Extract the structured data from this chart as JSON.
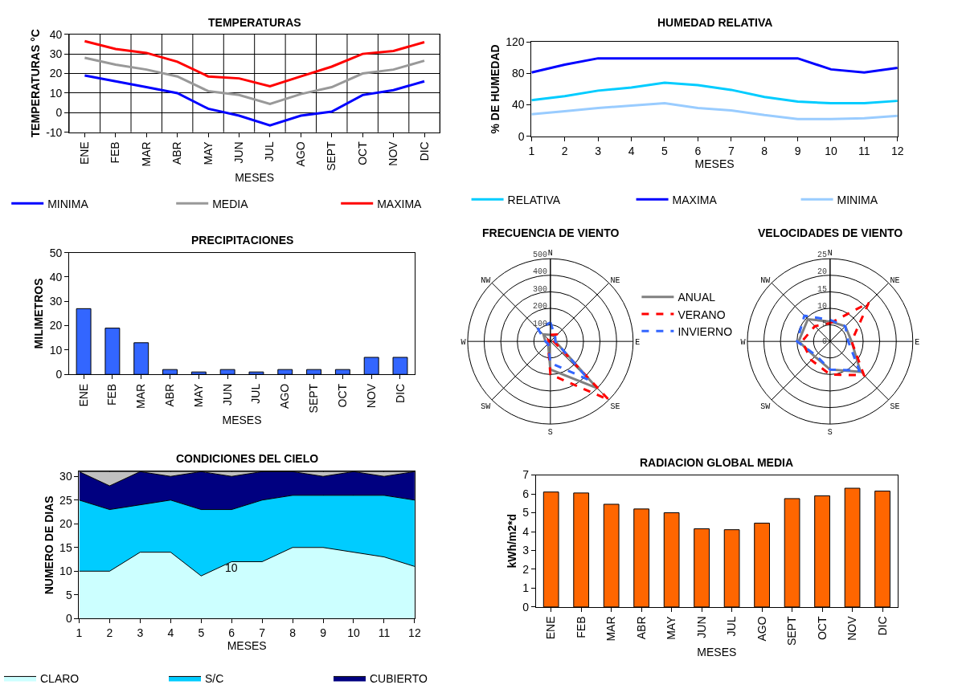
{
  "chart_data": [
    {
      "type": "line",
      "title": "TEMPERATURAS",
      "xlabel": "MESES",
      "ylabel": "TEMPERATURAS °C",
      "categories": [
        "ENE",
        "FEB",
        "MAR",
        "ABR",
        "MAY",
        "JUN",
        "JUL",
        "AGO",
        "SEPT",
        "OCT",
        "NOV",
        "DIC"
      ],
      "ylim": [
        -10,
        40
      ],
      "yticks": [
        -10,
        0,
        10,
        20,
        30,
        40
      ],
      "grid": true,
      "legend": "bottom",
      "series": [
        {
          "name": "MINIMA",
          "color": "#0000ff",
          "values": [
            19,
            16,
            13,
            10,
            2,
            -1.5,
            -6.5,
            -1.5,
            0.5,
            9,
            11.5,
            16
          ]
        },
        {
          "name": "MEDIA",
          "color": "#999999",
          "values": [
            28,
            24.5,
            22,
            18.5,
            11,
            9,
            4.5,
            9.5,
            13,
            20,
            22,
            26.5
          ]
        },
        {
          "name": "MAXIMA",
          "color": "#ff0000",
          "values": [
            36.5,
            32.5,
            30.5,
            26,
            18.5,
            17.5,
            13.5,
            18.5,
            23.5,
            30,
            31.5,
            36
          ]
        }
      ]
    },
    {
      "type": "line",
      "title": "HUMEDAD RELATIVA",
      "xlabel": "MESES",
      "ylabel": "% DE HUMEDAD",
      "x": [
        1,
        2,
        3,
        4,
        5,
        6,
        7,
        8,
        9,
        10,
        11,
        12
      ],
      "xlim": [
        1,
        12
      ],
      "xticks": [
        1,
        2,
        3,
        4,
        5,
        6,
        7,
        8,
        9,
        10,
        11,
        12
      ],
      "ylim": [
        0,
        120
      ],
      "yticks": [
        0,
        40,
        80,
        120
      ],
      "legend": "bottom",
      "series": [
        {
          "name": "RELATIVA",
          "color": "#00ccff",
          "values": [
            46,
            51,
            58,
            62,
            68,
            65,
            59,
            50,
            44,
            42,
            42,
            45
          ]
        },
        {
          "name": "MAXIMA",
          "color": "#0000ff",
          "values": [
            81,
            91,
            99,
            99,
            99,
            99,
            99,
            99,
            99,
            85,
            81,
            87
          ]
        },
        {
          "name": "MINIMA",
          "color": "#99ccff",
          "values": [
            28,
            32,
            36,
            39,
            42,
            36,
            33,
            27,
            22,
            22,
            23,
            26
          ]
        }
      ]
    },
    {
      "type": "bar",
      "title": "PRECIPITACIONES",
      "xlabel": "MESES",
      "ylabel": "MILIMETROS",
      "categories": [
        "ENE",
        "FEB",
        "MAR",
        "ABR",
        "MAY",
        "JUN",
        "JUL",
        "AGO",
        "SEPT",
        "OCT",
        "NOV",
        "DIC"
      ],
      "ylim": [
        0,
        50
      ],
      "yticks": [
        0,
        10,
        20,
        30,
        40,
        50
      ],
      "color": "#3366ff",
      "values": [
        27,
        19,
        13,
        2,
        1,
        2,
        1,
        2,
        2,
        2,
        7,
        7
      ]
    },
    {
      "type": "radar",
      "title": "FRECUENCIA DE VIENTO",
      "categories": [
        "N",
        "NE",
        "E",
        "SE",
        "S",
        "SW",
        "W",
        "NW"
      ],
      "ylim": [
        0,
        500
      ],
      "yticks": [
        100,
        200,
        300,
        400,
        500
      ],
      "grid": true,
      "legend": "right",
      "series": [
        {
          "name": "ANUAL",
          "color": "#808080",
          "line_style": "solid",
          "values": [
            40,
            40,
            30,
            400,
            170,
            20,
            30,
            60
          ]
        },
        {
          "name": "VERANO",
          "color": "#ff0000",
          "line_style": "dashed",
          "values": [
            40,
            60,
            20,
            500,
            200,
            20,
            10,
            20
          ]
        },
        {
          "name": "INVIERNO",
          "color": "#3366ff",
          "line_style": "dashed",
          "values": [
            115,
            40,
            30,
            330,
            130,
            20,
            30,
            105
          ]
        }
      ]
    },
    {
      "type": "radar",
      "title": "VELOCIDADES DE VIENTO",
      "categories": [
        "N",
        "NE",
        "E",
        "SE",
        "S",
        "SW",
        "W",
        "NW"
      ],
      "ylim": [
        0,
        25
      ],
      "yticks": [
        0,
        5,
        10,
        15,
        20,
        25
      ],
      "grid": true,
      "series": [
        {
          "color": "#808080",
          "line_style": "solid",
          "values": [
            6,
            6.5,
            6.5,
            13,
            8.5,
            6.5,
            9.5,
            9.5
          ]
        },
        {
          "color": "#ff0000",
          "line_style": "dashed",
          "values": [
            5.5,
            16.5,
            6.5,
            14.5,
            10,
            8,
            8.5,
            6.5
          ]
        },
        {
          "color": "#3366ff",
          "line_style": "dashed",
          "values": [
            6.5,
            6.5,
            5.5,
            12.5,
            8.5,
            6,
            10,
            11
          ]
        }
      ]
    },
    {
      "type": "area",
      "stacked": true,
      "title": "CONDICIONES DEL CIELO",
      "xlabel": "MESES",
      "ylabel": "NUMERO DE DIAS",
      "x": [
        1,
        2,
        3,
        4,
        5,
        6,
        7,
        8,
        9,
        10,
        11,
        12
      ],
      "xlim": [
        1,
        12
      ],
      "xticks": [
        1,
        2,
        3,
        4,
        5,
        6,
        7,
        8,
        9,
        10,
        11,
        12
      ],
      "ylim": [
        0,
        31
      ],
      "yticks": [
        0,
        5,
        10,
        15,
        20,
        25,
        30
      ],
      "grid": "x",
      "legend": "bottom",
      "annotations": [
        "10"
      ],
      "series": [
        {
          "name": "CLARO",
          "color": "#ccffff",
          "values": [
            10,
            10,
            14,
            14,
            9,
            12,
            12,
            15,
            15,
            14,
            13,
            11
          ]
        },
        {
          "name": "S/C",
          "color": "#00ccff",
          "values": [
            15,
            13,
            10,
            11,
            14,
            11,
            13,
            11,
            11,
            12,
            13,
            14
          ]
        },
        {
          "name": "CUBIERTO",
          "color": "#000080",
          "values": [
            6,
            5,
            7,
            5,
            8,
            7,
            6,
            5,
            4,
            5,
            4,
            6
          ]
        },
        {
          "color": "#c0c0c0",
          "values": [
            0,
            3,
            0,
            1,
            0,
            1,
            0,
            0,
            1,
            0,
            1,
            0
          ]
        }
      ]
    },
    {
      "type": "bar",
      "title": "RADIACION GLOBAL MEDIA",
      "xlabel": "MESES",
      "ylabel": "kWh/m2*d",
      "categories": [
        "ENE",
        "FEB",
        "MAR",
        "ABR",
        "MAY",
        "JUN",
        "JUL",
        "AGO",
        "SEPT",
        "OCT",
        "NOV",
        "DIC"
      ],
      "ylim": [
        0,
        7
      ],
      "yticks": [
        0,
        1,
        2,
        3,
        4,
        5,
        6,
        7
      ],
      "color": "#ff6600",
      "values": [
        6.1,
        6.05,
        5.45,
        5.2,
        5.0,
        4.15,
        4.1,
        4.45,
        5.75,
        5.9,
        6.3,
        6.15
      ]
    }
  ]
}
